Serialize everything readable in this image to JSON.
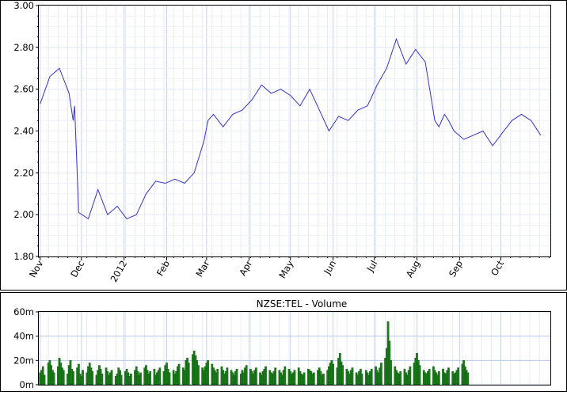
{
  "price_chart": {
    "type": "line",
    "ylim": [
      1.8,
      3.0
    ],
    "y_ticks": [
      "1.80",
      "2.00",
      "2.20",
      "2.40",
      "2.60",
      "2.80",
      "3.00"
    ],
    "x_ticks": [
      "Nov",
      "Dec",
      "2012",
      "Feb",
      "Mar",
      "Apr",
      "May",
      "Jun",
      "Jul",
      "Aug",
      "Sep",
      "Oct"
    ],
    "grid": true,
    "line_color": "#3333cc",
    "x": [
      "2011-11-01",
      "2011-11-08",
      "2011-11-15",
      "2011-11-22",
      "2011-11-25",
      "2011-11-26",
      "2011-11-29",
      "2011-12-06",
      "2011-12-13",
      "2011-12-20",
      "2011-12-27",
      "2012-01-03",
      "2012-01-10",
      "2012-01-17",
      "2012-01-24",
      "2012-01-31",
      "2012-02-07",
      "2012-02-14",
      "2012-02-21",
      "2012-02-28",
      "2012-03-02",
      "2012-03-06",
      "2012-03-13",
      "2012-03-20",
      "2012-03-27",
      "2012-04-03",
      "2012-04-10",
      "2012-04-17",
      "2012-04-24",
      "2012-05-01",
      "2012-05-08",
      "2012-05-15",
      "2012-05-22",
      "2012-05-29",
      "2012-06-05",
      "2012-06-12",
      "2012-06-19",
      "2012-06-26",
      "2012-07-03",
      "2012-07-10",
      "2012-07-17",
      "2012-07-24",
      "2012-07-31",
      "2012-08-07",
      "2012-08-14",
      "2012-08-17",
      "2012-08-21",
      "2012-08-24",
      "2012-08-28",
      "2012-09-04",
      "2012-09-11",
      "2012-09-18",
      "2012-09-25",
      "2012-10-02",
      "2012-10-09",
      "2012-10-16",
      "2012-10-23",
      "2012-10-30"
    ],
    "values": [
      2.53,
      2.66,
      2.7,
      2.58,
      2.45,
      2.52,
      2.01,
      1.98,
      2.12,
      2.0,
      2.04,
      1.98,
      2.0,
      2.1,
      2.16,
      2.15,
      2.17,
      2.15,
      2.2,
      2.35,
      2.45,
      2.48,
      2.42,
      2.48,
      2.5,
      2.55,
      2.62,
      2.58,
      2.6,
      2.57,
      2.52,
      2.6,
      2.5,
      2.4,
      2.47,
      2.45,
      2.5,
      2.52,
      2.62,
      2.7,
      2.84,
      2.72,
      2.79,
      2.73,
      2.45,
      2.42,
      2.48,
      2.45,
      2.4,
      2.36,
      2.38,
      2.4,
      2.33,
      2.39,
      2.45,
      2.48,
      2.45,
      2.38
    ],
    "x_range": [
      "2011-10-31",
      "2012-11-06"
    ]
  },
  "volume_chart": {
    "type": "bar",
    "title": "NZSE:TEL - Volume",
    "ylim": [
      0,
      60
    ],
    "y_ticks": [
      "0m",
      "20m",
      "40m",
      "60m"
    ],
    "grid": true,
    "bar_color": "#1a7a1a",
    "x_range": [
      "2011-10-31",
      "2012-11-06"
    ],
    "start_date": "2011-11-01",
    "values_m": [
      10,
      12,
      15,
      8,
      18,
      20,
      16,
      12,
      10,
      15,
      22,
      18,
      14,
      12,
      9,
      16,
      20,
      13,
      11,
      14,
      17,
      9,
      7,
      12,
      10,
      15,
      18,
      14,
      11,
      8,
      12,
      16,
      13,
      9,
      14,
      11,
      8,
      10,
      12,
      7,
      9,
      14,
      12,
      8,
      11,
      13,
      10,
      7,
      9,
      12,
      15,
      11,
      8,
      10,
      14,
      16,
      12,
      9,
      11,
      13,
      8,
      10,
      12,
      14,
      11,
      16,
      18,
      13,
      10,
      12,
      9,
      11,
      15,
      17,
      14,
      12,
      20,
      22,
      18,
      25,
      28,
      24,
      20,
      16,
      14,
      12,
      15,
      18,
      20,
      17,
      14,
      12,
      10,
      13,
      15,
      12,
      9,
      11,
      14,
      12,
      10,
      8,
      11,
      13,
      9,
      12,
      10,
      14,
      16,
      13,
      11,
      9,
      12,
      14,
      10,
      8,
      11,
      13,
      15,
      12,
      10,
      9,
      11,
      14,
      12,
      10,
      8,
      12,
      15,
      13,
      11,
      9,
      10,
      12,
      14,
      11,
      9,
      8,
      10,
      13,
      12,
      11,
      9,
      10,
      12,
      14,
      11,
      8,
      9,
      12,
      15,
      18,
      20,
      17,
      14,
      22,
      26,
      19,
      16,
      13,
      11,
      9,
      12,
      14,
      10,
      8,
      11,
      13,
      9,
      12,
      10,
      8,
      11,
      13,
      15,
      12,
      10,
      14,
      18,
      22,
      30,
      52,
      36,
      20,
      15,
      12,
      10,
      9,
      11,
      13,
      10,
      8,
      12,
      15,
      18,
      22,
      26,
      20,
      16,
      12,
      10,
      9,
      11,
      13,
      15,
      12,
      10,
      8,
      11,
      13,
      10,
      9,
      12,
      14,
      11,
      9,
      10,
      12,
      14,
      17,
      20,
      15,
      12,
      10
    ]
  }
}
